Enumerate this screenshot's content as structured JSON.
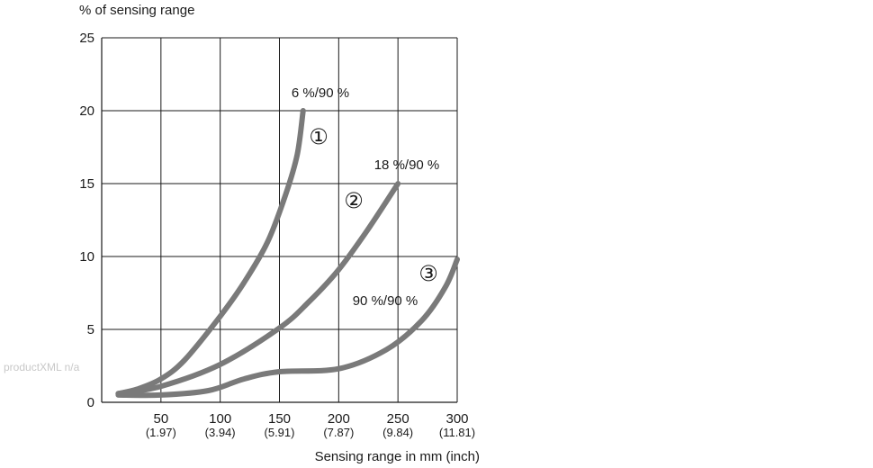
{
  "chart_data": {
    "type": "line",
    "ylabel": "% of sensing range",
    "xlabel": "Sensing range in mm (inch)",
    "xlim": [
      0,
      300
    ],
    "ylim": [
      0,
      25
    ],
    "grid": true,
    "x_ticks": [
      {
        "value": 50,
        "label": "50",
        "sublabel": "(1.97)"
      },
      {
        "value": 100,
        "label": "100",
        "sublabel": "(3.94)"
      },
      {
        "value": 150,
        "label": "150",
        "sublabel": "(5.91)"
      },
      {
        "value": 200,
        "label": "200",
        "sublabel": "(7.87)"
      },
      {
        "value": 250,
        "label": "250",
        "sublabel": "(9.84)"
      },
      {
        "value": 300,
        "label": "300",
        "sublabel": "(11.81)"
      }
    ],
    "y_ticks": [
      {
        "value": 0,
        "label": "0"
      },
      {
        "value": 5,
        "label": "5"
      },
      {
        "value": 10,
        "label": "10"
      },
      {
        "value": 15,
        "label": "15"
      },
      {
        "value": 20,
        "label": "20"
      },
      {
        "value": 25,
        "label": "25"
      }
    ],
    "series": [
      {
        "marker": "①",
        "label": "6 %/90 %",
        "color": "#7a7a7a",
        "x": [
          14,
          30,
          50,
          70,
          100,
          120,
          140,
          155,
          165,
          170
        ],
        "y": [
          0.6,
          0.9,
          1.6,
          2.9,
          5.9,
          8.2,
          11.0,
          14.2,
          17.0,
          20.0
        ]
      },
      {
        "marker": "②",
        "label": "18 %/90 %",
        "color": "#7a7a7a",
        "x": [
          14,
          50,
          100,
          150,
          175,
          200,
          225,
          250
        ],
        "y": [
          0.6,
          1.1,
          2.6,
          5.1,
          6.9,
          9.1,
          11.9,
          15.0
        ]
      },
      {
        "marker": "③",
        "label": "90 %/90 %",
        "color": "#7a7a7a",
        "x": [
          14,
          50,
          90,
          120,
          150,
          200,
          240,
          270,
          290,
          300
        ],
        "y": [
          0.5,
          0.5,
          0.8,
          1.6,
          2.1,
          2.3,
          3.6,
          5.6,
          7.9,
          9.8
        ]
      }
    ]
  },
  "watermark": "productXML n/a"
}
